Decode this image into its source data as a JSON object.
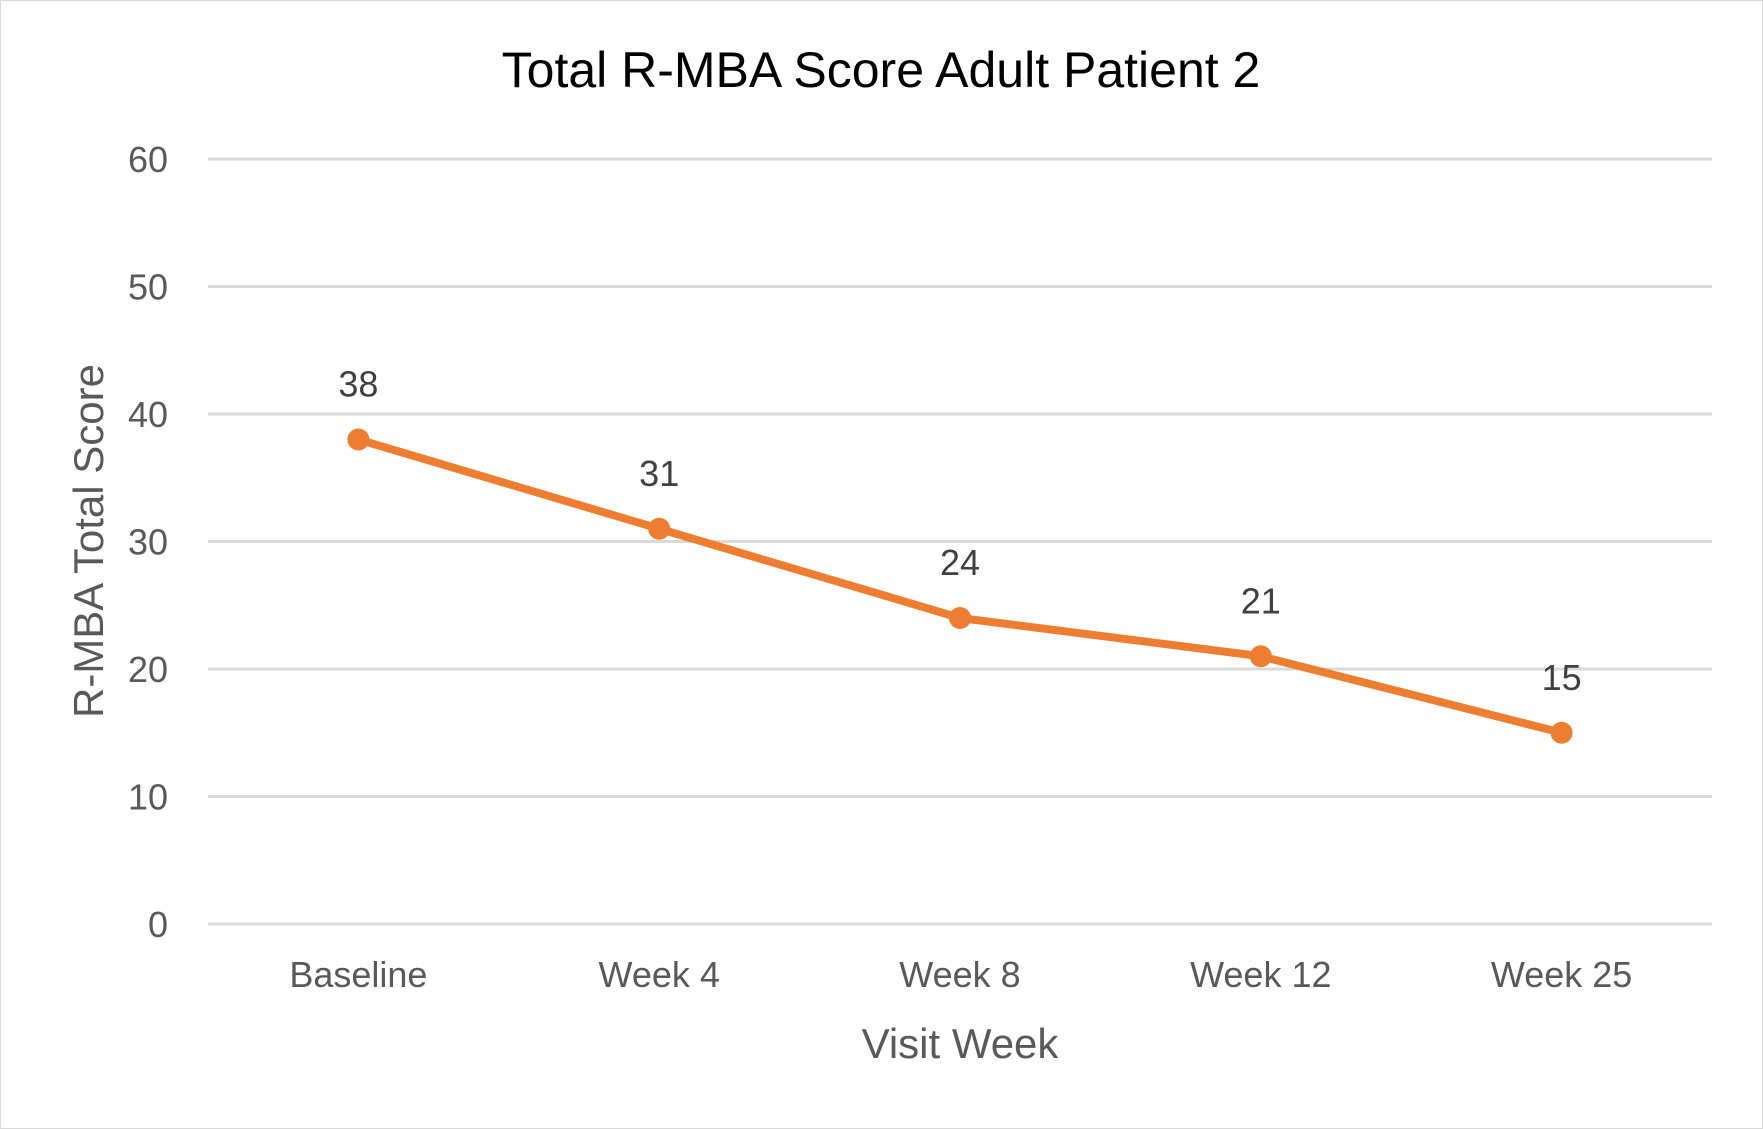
{
  "chart_data": {
    "type": "line",
    "title": "Total R-MBA Score Adult Patient 2",
    "xlabel": "Visit Week",
    "ylabel": "R-MBA Total Score",
    "categories": [
      "Baseline",
      "Week 4",
      "Week 8",
      "Week 12",
      "Week 25"
    ],
    "series": [
      {
        "name": "Total R-MBA Score",
        "values": [
          38,
          31,
          24,
          21,
          15
        ],
        "color": "#ED7D31"
      }
    ],
    "ylim": [
      0,
      60
    ],
    "yticks": [
      "0",
      "10",
      "20",
      "30",
      "40",
      "50",
      "60"
    ],
    "grid": true,
    "data_labels": true
  }
}
